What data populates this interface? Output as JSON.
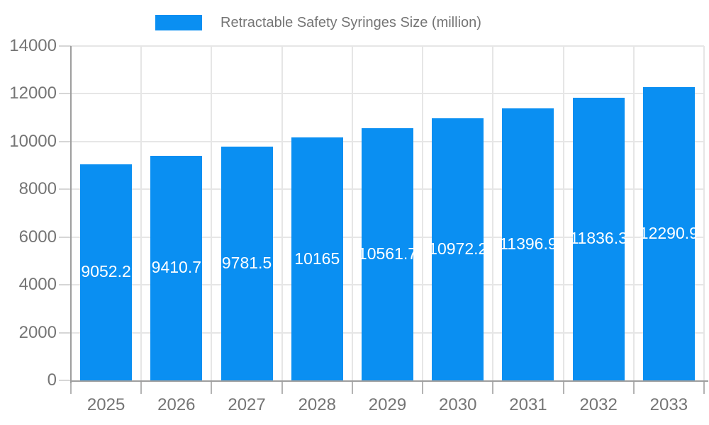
{
  "legend": {
    "label": "Retractable Safety Syringes Size (million)"
  },
  "chart_data": {
    "type": "bar",
    "title": "Retractable Safety Syringes Size (million)",
    "categories": [
      "2025",
      "2026",
      "2027",
      "2028",
      "2029",
      "2030",
      "2031",
      "2032",
      "2033"
    ],
    "series": [
      {
        "name": "Retractable Safety Syringes Size (million)",
        "values": [
          9052.2,
          9410.7,
          9781.5,
          10165,
          10561.7,
          10972.2,
          11396.9,
          11836.3,
          12290.9
        ]
      }
    ],
    "bar_labels": [
      "9052.2",
      "9410.7",
      "9781.5",
      "10165",
      "10561.7",
      "10972.2",
      "11396.9",
      "11836.3",
      "12290.9"
    ],
    "xlabel": "",
    "ylabel": "",
    "ylim": [
      0,
      14000
    ],
    "ytick_step": 2000,
    "ytick_labels": [
      "0",
      "2000",
      "4000",
      "6000",
      "8000",
      "10000",
      "12000",
      "14000"
    ],
    "grid": true,
    "legend_position": "top",
    "colors": {
      "bar": "#0a8ff2",
      "axis_line": "#9e9e9e",
      "grid_line": "#e6e6e6",
      "x_tick": "#b3b3b3",
      "y_tick": "#d6d6d6",
      "axis_text": "#757575",
      "value_text": "#ffffff"
    }
  }
}
